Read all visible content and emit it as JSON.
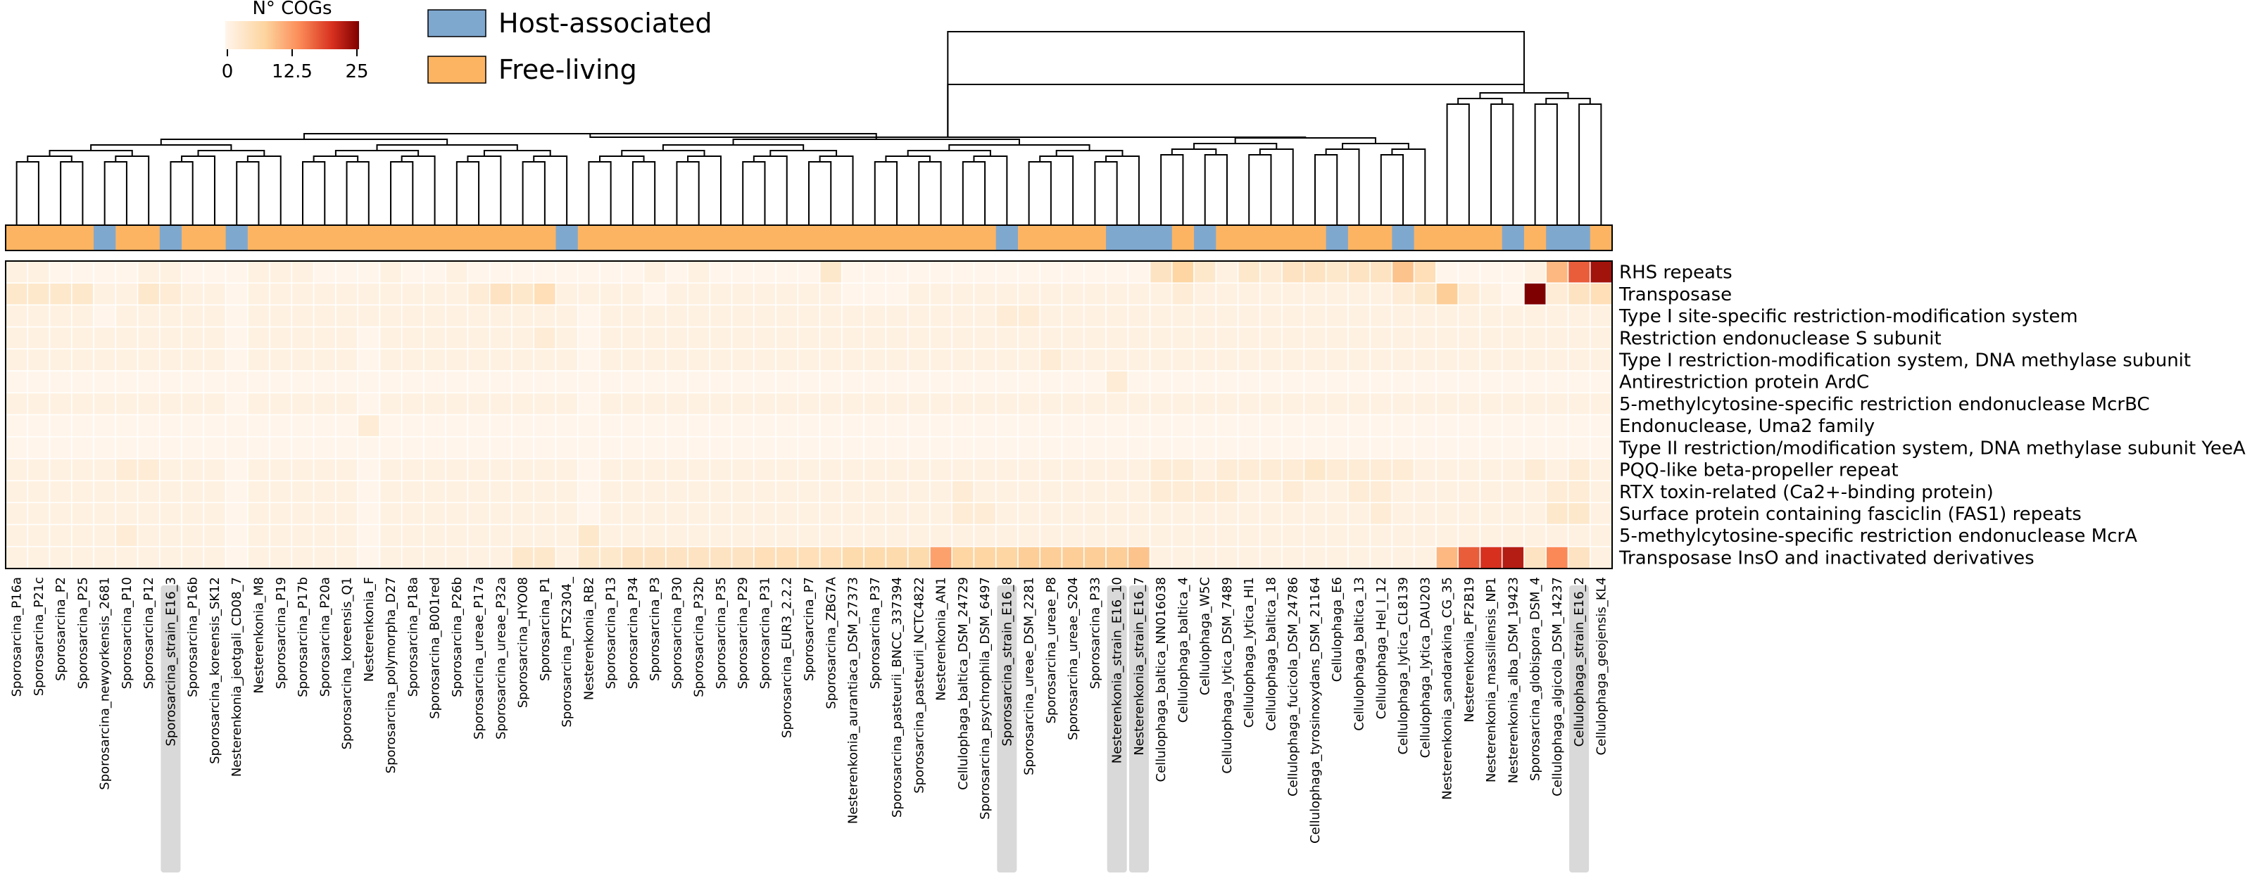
{
  "chart_data": {
    "type": "heatmap",
    "title": "",
    "colorbar": {
      "title": "N° COGs",
      "ticks": [
        "0",
        "12.5",
        "25"
      ],
      "range": [
        0,
        25
      ],
      "colors": [
        "#fff5eb",
        "#fdd49e",
        "#fc8d59",
        "#d7301f",
        "#7f0000"
      ]
    },
    "legend": [
      {
        "label": "Host-associated",
        "color": "#7fa8cf"
      },
      {
        "label": "Free-living",
        "color": "#fdb462"
      }
    ],
    "rows": [
      "RHS repeats",
      "Transposase",
      "Type I site-specific restriction-modification system",
      "Restriction endonuclease S subunit",
      "Type I restriction-modification system, DNA methylase subunit",
      "Antirestriction protein ArdC",
      "5-methylcytosine-specific restriction endonuclease McrBC",
      "Endonuclease, Uma2 family",
      "Type II restriction/modification system, DNA methylase subunit YeeA",
      "PQQ-like beta-propeller repeat",
      "RTX toxin-related (Ca2+-binding protein)",
      "Surface protein containing fasciclin (FAS1) repeats",
      "5-methylcytosine-specific restriction endonuclease McrA",
      "Transposase InsO and inactivated derivatives"
    ],
    "columns": [
      "Sporosarcina_P16a",
      "Sporosarcina_P21c",
      "Sporosarcina_P2",
      "Sporosarcina_P25",
      "Sporosarcina_newyorkensis_2681",
      "Sporosarcina_P10",
      "Sporosarcina_P12",
      "Sporosarcina_strain_E16_3",
      "Sporosarcina_P16b",
      "Sporosarcina_koreensis_SK12",
      "Nesterenkonia_jeotgali_CD08_7",
      "Nesterenkonia_M8",
      "Sporosarcina_P19",
      "Sporosarcina_P17b",
      "Sporosarcina_P20a",
      "Sporosarcina_koreensis_Q1",
      "Nesterenkonia_F",
      "Sporosarcina_polymorpha_D27",
      "Sporosarcina_P18a",
      "Sporosarcina_B001red",
      "Sporosarcina_P26b",
      "Sporosarcina_ureae_P17a",
      "Sporosarcina_ureae_P32a",
      "Sporosarcina_HYO08",
      "Sporosarcina_P1",
      "Sporosarcina_PTS2304_",
      "Nesterenkonia_RB2",
      "Sporosarcina_P13",
      "Sporosarcina_P34",
      "Sporosarcina_P3",
      "Sporosarcina_P30",
      "Sporosarcina_P32b",
      "Sporosarcina_P35",
      "Sporosarcina_P29",
      "Sporosarcina_P31",
      "Sporosarcina_EUR3_2.2.2",
      "Sporosarcina_P7",
      "Sporosarcina_ZBG7A",
      "Nesterenkonia_aurantiaca_DSM_27373",
      "Sporosarcina_P37",
      "Sporosarcina_pasteurii_BNCC_337394",
      "Sporosarcina_pasteurii_NCTC4822",
      "Nesterenkonia_AN1",
      "Cellulophaga_baltica_DSM_24729",
      "Sporosarcina_psychrophila_DSM_6497",
      "Sporosarcina_strain_E16_8",
      "Sporosarcina_ureae_DSM_2281",
      "Sporosarcina_ureae_P8",
      "Sporosarcina_ureae_S204",
      "Sporosarcina_P33",
      "Nesterenkonia_strain_E16_10",
      "Nesterenkonia_strain_E16_7",
      "Cellulophaga_baltica_NN016038",
      "Cellulophaga_baltica_4",
      "Cellulophaga_W5C",
      "Cellulophaga_lytica_DSM_7489",
      "Cellulophaga_lytica_HI1",
      "Cellulophaga_baltica_18",
      "Cellulophaga_fucicola_DSM_24786",
      "Cellulophaga_tyrosinoxydans_DSM_21164",
      "Cellulophaga_E6",
      "Cellulophaga_baltica_13",
      "Cellulophaga_Hel_I_12",
      "Cellulophaga_lytica_CL8139",
      "Cellulophaga_lytica_DAU203",
      "Nesterenkonia_sandarakina_CG_35",
      "Nesterenkonia_PF2B19",
      "Nesterenkonia_massiliensis_NP1",
      "Nesterenkonia_alba_DSM_19423",
      "Sporosarcina_globispora_DSM_4",
      "Cellulophaga_algicola_DSM_14237",
      "Cellulophaga_strain_E16_2",
      "Cellulophaga_geojensis_KL4"
    ],
    "highlighted_columns": [
      "Sporosarcina_strain_E16_3",
      "Sporosarcina_strain_E16_8",
      "Nesterenkonia_strain_E16_10",
      "Nesterenkonia_strain_E16_7",
      "Cellulophaga_strain_E16_2"
    ],
    "lifestyle": [
      "F",
      "F",
      "F",
      "F",
      "H",
      "F",
      "F",
      "H",
      "F",
      "F",
      "H",
      "F",
      "F",
      "F",
      "F",
      "F",
      "F",
      "F",
      "F",
      "F",
      "F",
      "F",
      "F",
      "F",
      "F",
      "H",
      "F",
      "F",
      "F",
      "F",
      "F",
      "F",
      "F",
      "F",
      "F",
      "F",
      "F",
      "F",
      "F",
      "F",
      "F",
      "F",
      "F",
      "F",
      "F",
      "H",
      "F",
      "F",
      "F",
      "F",
      "H",
      "H",
      "H",
      "F",
      "H",
      "F",
      "F",
      "F",
      "F",
      "F",
      "H",
      "F",
      "F",
      "H",
      "F",
      "F",
      "F",
      "F",
      "H",
      "F",
      "H",
      "H",
      "F"
    ],
    "values": [
      [
        1,
        1,
        0,
        0,
        0,
        0,
        1,
        1,
        0,
        0,
        0,
        1,
        1,
        1,
        0,
        0,
        0,
        1,
        0,
        0,
        1,
        0,
        0,
        0,
        0,
        0,
        0,
        0,
        0,
        1,
        0,
        1,
        0,
        0,
        0,
        0,
        0,
        3,
        0,
        0,
        0,
        0,
        0,
        0,
        0,
        0,
        0,
        0,
        0,
        0,
        0,
        0,
        4,
        7,
        3,
        1,
        3,
        2,
        4,
        4,
        3,
        4,
        4,
        9,
        5,
        0,
        0,
        0,
        0,
        1,
        10,
        17,
        23
      ],
      [
        3,
        3,
        3,
        3,
        1,
        1,
        3,
        2,
        1,
        1,
        0,
        1,
        1,
        1,
        1,
        1,
        1,
        1,
        1,
        1,
        1,
        2,
        4,
        3,
        5,
        1,
        1,
        1,
        1,
        0,
        1,
        1,
        1,
        1,
        1,
        1,
        1,
        1,
        0,
        0,
        0,
        1,
        1,
        1,
        1,
        1,
        1,
        1,
        1,
        1,
        1,
        1,
        1,
        2,
        1,
        1,
        1,
        1,
        1,
        1,
        1,
        1,
        1,
        2,
        3,
        8,
        2,
        1,
        0,
        25,
        2,
        4,
        5
      ],
      [
        1,
        1,
        1,
        1,
        0,
        1,
        1,
        1,
        1,
        1,
        0,
        1,
        1,
        1,
        1,
        1,
        1,
        1,
        1,
        1,
        1,
        1,
        1,
        1,
        1,
        1,
        0,
        1,
        1,
        1,
        1,
        1,
        1,
        1,
        1,
        1,
        1,
        1,
        1,
        1,
        1,
        1,
        1,
        1,
        1,
        2,
        2,
        1,
        1,
        1,
        1,
        1,
        1,
        1,
        1,
        1,
        1,
        1,
        1,
        1,
        1,
        1,
        1,
        1,
        1,
        1,
        1,
        1,
        1,
        1,
        1,
        1,
        1
      ],
      [
        1,
        1,
        1,
        1,
        1,
        1,
        1,
        1,
        1,
        1,
        0,
        1,
        1,
        1,
        1,
        1,
        0,
        1,
        1,
        1,
        1,
        1,
        1,
        1,
        2,
        1,
        0,
        1,
        1,
        1,
        1,
        1,
        1,
        1,
        1,
        1,
        1,
        1,
        1,
        1,
        1,
        1,
        1,
        1,
        1,
        1,
        1,
        1,
        1,
        1,
        1,
        1,
        1,
        1,
        1,
        1,
        1,
        1,
        1,
        1,
        1,
        1,
        1,
        1,
        1,
        1,
        1,
        1,
        1,
        1,
        1,
        1,
        1
      ],
      [
        1,
        1,
        1,
        1,
        1,
        1,
        1,
        1,
        1,
        1,
        0,
        1,
        1,
        1,
        1,
        1,
        0,
        1,
        1,
        1,
        1,
        1,
        1,
        1,
        1,
        1,
        0,
        1,
        1,
        1,
        1,
        1,
        1,
        1,
        1,
        1,
        1,
        1,
        1,
        1,
        1,
        1,
        1,
        1,
        1,
        1,
        1,
        2,
        1,
        1,
        1,
        1,
        1,
        1,
        1,
        1,
        1,
        1,
        1,
        1,
        1,
        1,
        1,
        1,
        1,
        1,
        1,
        1,
        1,
        1,
        1,
        1,
        1
      ],
      [
        0,
        0,
        0,
        0,
        0,
        0,
        0,
        0,
        0,
        0,
        0,
        0,
        0,
        0,
        0,
        0,
        0,
        0,
        0,
        0,
        0,
        0,
        0,
        0,
        0,
        0,
        0,
        0,
        0,
        0,
        0,
        0,
        0,
        0,
        0,
        0,
        0,
        0,
        0,
        0,
        0,
        0,
        0,
        0,
        0,
        0,
        0,
        0,
        0,
        0,
        2,
        0,
        0,
        0,
        0,
        0,
        0,
        0,
        0,
        0,
        0,
        0,
        0,
        0,
        0,
        0,
        0,
        0,
        0,
        0,
        0,
        0,
        0
      ],
      [
        1,
        1,
        1,
        1,
        1,
        1,
        1,
        1,
        1,
        1,
        0,
        1,
        1,
        1,
        1,
        1,
        0,
        1,
        1,
        1,
        1,
        1,
        1,
        1,
        1,
        1,
        0,
        1,
        1,
        1,
        1,
        1,
        1,
        1,
        1,
        1,
        1,
        1,
        1,
        1,
        1,
        1,
        1,
        1,
        1,
        1,
        1,
        1,
        1,
        1,
        1,
        1,
        1,
        1,
        1,
        1,
        1,
        1,
        1,
        1,
        1,
        1,
        1,
        1,
        1,
        1,
        1,
        1,
        1,
        1,
        1,
        1,
        1
      ],
      [
        0,
        0,
        0,
        0,
        0,
        0,
        0,
        0,
        0,
        0,
        0,
        0,
        0,
        0,
        0,
        0,
        2,
        0,
        0,
        0,
        0,
        0,
        0,
        0,
        0,
        0,
        0,
        0,
        0,
        0,
        0,
        0,
        0,
        0,
        0,
        0,
        0,
        0,
        0,
        0,
        0,
        0,
        0,
        0,
        0,
        0,
        0,
        0,
        0,
        0,
        0,
        0,
        0,
        0,
        0,
        0,
        0,
        0,
        0,
        0,
        0,
        0,
        0,
        0,
        0,
        0,
        0,
        0,
        0,
        0,
        0,
        0,
        0
      ],
      [
        0,
        0,
        0,
        0,
        0,
        0,
        0,
        0,
        0,
        0,
        0,
        0,
        0,
        0,
        0,
        0,
        0,
        0,
        0,
        0,
        0,
        0,
        0,
        0,
        0,
        0,
        0,
        0,
        0,
        0,
        0,
        0,
        0,
        0,
        0,
        0,
        0,
        0,
        0,
        0,
        0,
        0,
        0,
        0,
        0,
        0,
        0,
        0,
        0,
        0,
        0,
        0,
        0,
        0,
        0,
        0,
        0,
        0,
        0,
        0,
        0,
        0,
        0,
        0,
        0,
        0,
        0,
        0,
        0,
        0,
        0,
        0,
        0
      ],
      [
        1,
        1,
        1,
        1,
        1,
        2,
        2,
        1,
        1,
        1,
        0,
        1,
        1,
        1,
        1,
        1,
        0,
        1,
        1,
        1,
        1,
        1,
        1,
        1,
        1,
        1,
        0,
        1,
        1,
        1,
        1,
        1,
        1,
        1,
        1,
        1,
        1,
        1,
        1,
        1,
        1,
        1,
        1,
        1,
        1,
        1,
        1,
        1,
        1,
        1,
        1,
        1,
        2,
        2,
        1,
        2,
        2,
        2,
        2,
        3,
        2,
        2,
        2,
        2,
        1,
        1,
        1,
        1,
        1,
        2,
        1,
        2,
        1
      ],
      [
        1,
        1,
        1,
        1,
        1,
        1,
        1,
        1,
        1,
        1,
        0,
        1,
        1,
        1,
        1,
        1,
        0,
        1,
        1,
        1,
        1,
        1,
        1,
        1,
        1,
        1,
        0,
        1,
        1,
        1,
        1,
        1,
        1,
        1,
        1,
        1,
        1,
        1,
        1,
        1,
        1,
        1,
        1,
        2,
        1,
        1,
        1,
        1,
        1,
        1,
        1,
        1,
        2,
        2,
        2,
        2,
        1,
        1,
        2,
        1,
        1,
        2,
        2,
        1,
        1,
        1,
        1,
        1,
        1,
        1,
        2,
        2,
        1
      ],
      [
        1,
        1,
        1,
        1,
        1,
        1,
        1,
        1,
        1,
        1,
        0,
        1,
        1,
        1,
        1,
        1,
        0,
        1,
        1,
        1,
        1,
        1,
        1,
        1,
        1,
        1,
        0,
        1,
        1,
        1,
        1,
        1,
        1,
        1,
        1,
        1,
        1,
        1,
        1,
        1,
        1,
        1,
        1,
        2,
        2,
        1,
        1,
        1,
        1,
        1,
        1,
        1,
        1,
        1,
        1,
        1,
        1,
        1,
        1,
        1,
        1,
        1,
        2,
        1,
        1,
        1,
        1,
        1,
        1,
        1,
        3,
        3,
        1
      ],
      [
        1,
        1,
        1,
        1,
        1,
        2,
        1,
        1,
        1,
        1,
        0,
        1,
        1,
        1,
        1,
        1,
        0,
        1,
        1,
        1,
        1,
        1,
        1,
        1,
        1,
        1,
        3,
        1,
        1,
        1,
        1,
        1,
        1,
        1,
        1,
        1,
        1,
        1,
        1,
        1,
        1,
        1,
        1,
        1,
        1,
        1,
        1,
        1,
        1,
        1,
        1,
        1,
        1,
        1,
        1,
        1,
        1,
        1,
        1,
        1,
        1,
        1,
        1,
        1,
        1,
        1,
        1,
        1,
        1,
        1,
        1,
        1,
        1
      ],
      [
        1,
        1,
        1,
        1,
        1,
        1,
        1,
        1,
        1,
        1,
        0,
        1,
        1,
        1,
        1,
        1,
        0,
        1,
        1,
        1,
        1,
        1,
        1,
        3,
        3,
        1,
        3,
        3,
        4,
        4,
        4,
        4,
        4,
        4,
        5,
        5,
        5,
        5,
        6,
        6,
        6,
        6,
        12,
        7,
        7,
        7,
        8,
        8,
        8,
        8,
        8,
        9,
        1,
        1,
        1,
        1,
        1,
        1,
        1,
        1,
        1,
        1,
        1,
        1,
        1,
        10,
        17,
        20,
        22,
        4,
        14,
        4,
        1
      ]
    ],
    "xlabel": "",
    "ylabel": ""
  }
}
